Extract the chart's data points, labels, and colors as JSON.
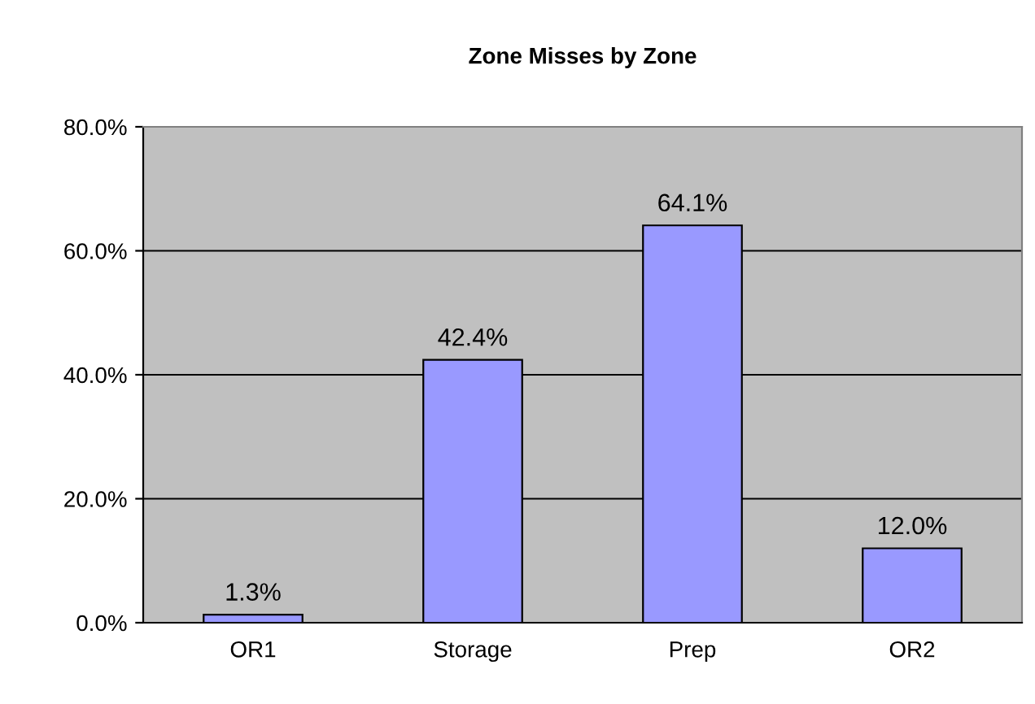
{
  "chart_data": {
    "type": "bar",
    "title": "Zone Misses by Zone",
    "categories": [
      "OR1",
      "Storage",
      "Prep",
      "OR2"
    ],
    "values": [
      1.3,
      42.4,
      64.1,
      12.0
    ],
    "value_labels": [
      "1.3%",
      "42.4%",
      "64.1%",
      "12.0%"
    ],
    "color": "#9999ff",
    "ylim": [
      0,
      80
    ],
    "yticks": [
      {
        "value": 0,
        "label": "0.0%"
      },
      {
        "value": 20,
        "label": "20.0%"
      },
      {
        "value": 40,
        "label": "40.0%"
      },
      {
        "value": 60,
        "label": "60.0%"
      },
      {
        "value": 80,
        "label": "80.0%"
      }
    ],
    "grid": "y"
  }
}
